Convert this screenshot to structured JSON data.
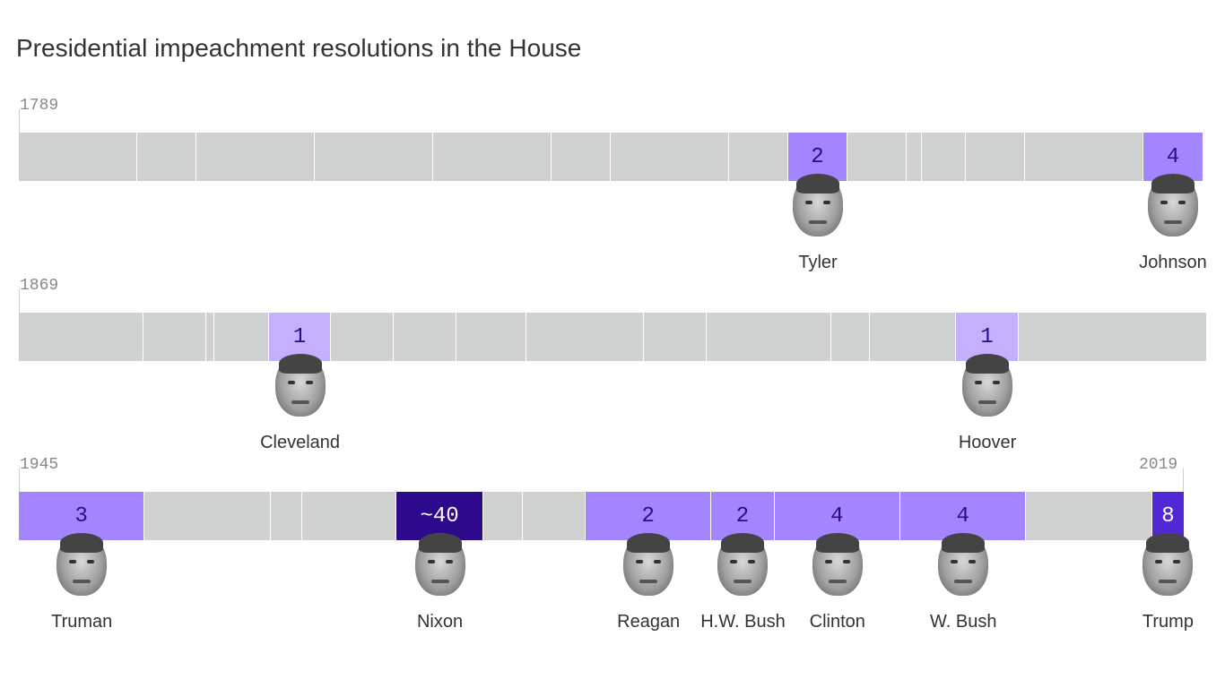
{
  "title": "Presidential impeachment resolutions in the House",
  "colors": {
    "none": "#cfd1d0",
    "low": "#c4b0ff",
    "mid": "#a385ff",
    "high": "#5028d4",
    "max": "#2d0a8c"
  },
  "chart_data": {
    "type": "timeline",
    "title": "Presidential impeachment resolutions in the House",
    "rows": [
      {
        "start_label": "1789",
        "range": [
          1789,
          1869
        ],
        "terms": [
          [
            1789,
            1797
          ],
          [
            1797,
            1801
          ],
          [
            1801,
            1809
          ],
          [
            1809,
            1817
          ],
          [
            1817,
            1825
          ],
          [
            1825,
            1829
          ],
          [
            1829,
            1837
          ],
          [
            1837,
            1841
          ],
          {
            "start": 1841,
            "end": 1845,
            "count": "2",
            "name": "Tyler",
            "level": "mid"
          },
          [
            1845,
            1849
          ],
          [
            1849,
            1850
          ],
          [
            1850,
            1853
          ],
          [
            1853,
            1857
          ],
          [
            1857,
            1865
          ],
          {
            "start": 1865,
            "end": 1869,
            "count": "4",
            "name": "Johnson",
            "level": "mid"
          }
        ]
      },
      {
        "start_label": "1869",
        "range": [
          1869,
          1945
        ],
        "terms": [
          [
            1869,
            1877
          ],
          [
            1877,
            1881
          ],
          [
            1881,
            1881.5
          ],
          [
            1881.5,
            1885
          ],
          {
            "start": 1885,
            "end": 1889,
            "count": "1",
            "name": "Cleveland",
            "level": "low"
          },
          [
            1889,
            1893
          ],
          [
            1893,
            1897
          ],
          [
            1897,
            1901.5
          ],
          [
            1901.5,
            1909
          ],
          [
            1909,
            1913
          ],
          [
            1913,
            1921
          ],
          [
            1921,
            1923.5
          ],
          [
            1923.5,
            1929
          ],
          {
            "start": 1929,
            "end": 1933,
            "count": "1",
            "name": "Hoover",
            "level": "low"
          },
          [
            1933,
            1945
          ]
        ]
      },
      {
        "start_label": "1945",
        "end_label": "2019",
        "range": [
          1945,
          2019
        ],
        "terms": [
          {
            "start": 1945,
            "end": 1953,
            "count": "3",
            "name": "Truman",
            "level": "mid"
          },
          [
            1953,
            1961
          ],
          [
            1961,
            1963
          ],
          [
            1963,
            1969
          ],
          {
            "start": 1969,
            "end": 1974.5,
            "count": "~40",
            "name": "Nixon",
            "level": "max"
          },
          [
            1974.5,
            1977
          ],
          [
            1977,
            1981
          ],
          {
            "start": 1981,
            "end": 1989,
            "count": "2",
            "name": "Reagan",
            "level": "mid"
          },
          {
            "start": 1989,
            "end": 1993,
            "count": "2",
            "name": "H.W. Bush",
            "level": "mid"
          },
          {
            "start": 1993,
            "end": 2001,
            "count": "4",
            "name": "Clinton",
            "level": "mid"
          },
          {
            "start": 2001,
            "end": 2009,
            "count": "4",
            "name": "W. Bush",
            "level": "mid"
          },
          [
            2009,
            2017
          ],
          {
            "start": 2017,
            "end": 2019,
            "count": "8",
            "name": "Trump",
            "level": "high"
          }
        ]
      }
    ]
  }
}
